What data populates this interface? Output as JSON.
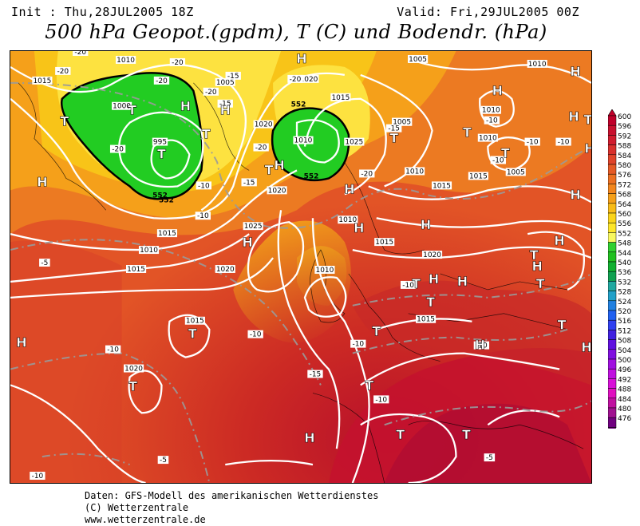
{
  "header": {
    "init": "Init : Thu,28JUL2005 18Z",
    "valid": "Valid: Fri,29JUL2005 00Z",
    "title": "500 hPa Geopot.(gpdm), T (C) und Bodendr. (hPa)"
  },
  "footer": {
    "line1": "Daten: GFS-Modell des amerikanischen Wetterdienstes",
    "line2": "(C) Wetterzentrale",
    "line3": "www.wetterzentrale.de"
  },
  "legend": {
    "levels": [
      "600",
      "596",
      "592",
      "588",
      "584",
      "580",
      "576",
      "572",
      "568",
      "564",
      "560",
      "556",
      "552",
      "548",
      "544",
      "540",
      "536",
      "532",
      "528",
      "524",
      "520",
      "516",
      "512",
      "508",
      "504",
      "500",
      "496",
      "492",
      "488",
      "484",
      "480",
      "476"
    ],
    "colors": [
      "#c0002a",
      "#c8102e",
      "#d01c2e",
      "#d8302c",
      "#e0442a",
      "#e55a26",
      "#ec7022",
      "#f2861e",
      "#f5a01a",
      "#f8bc18",
      "#fad41a",
      "#fde62a",
      "#f8f860",
      "#30d030",
      "#20c020",
      "#10b030",
      "#10a050",
      "#20a8a0",
      "#20a0c8",
      "#2080e0",
      "#2060f0",
      "#3040f0",
      "#4020e0",
      "#6010e0",
      "#8010e0",
      "#a010e0",
      "#c010e0",
      "#d810d8",
      "#e010c0",
      "#c010a0",
      "#a01090",
      "#700080"
    ]
  },
  "map_labels": {
    "pressure": [
      "1010",
      "1015",
      "1005",
      "1000",
      "995",
      "1020",
      "1005",
      "1010",
      "1015",
      "1020",
      "1025",
      "1015",
      "1010",
      "1015",
      "1010",
      "1005",
      "1010",
      "1015",
      "1020",
      "1025",
      "1020",
      "1015",
      "1010",
      "1015",
      "1010",
      "1015",
      "1020",
      "1010",
      "1005",
      "1010",
      "1015",
      "1020",
      "1015"
    ],
    "temperature": [
      "-20",
      "-20",
      "-20",
      "-20",
      "-15",
      "-20",
      "-20",
      "-20",
      "-15",
      "-20",
      "-10",
      "-10",
      "-15",
      "-20",
      "-15",
      "-10",
      "-10",
      "-10",
      "-10",
      "-5",
      "-10",
      "-10",
      "-15",
      "-10",
      "-10",
      "-10",
      "-5",
      "-10",
      "-5",
      "-10"
    ],
    "height": [
      "552",
      "552",
      "552",
      "552"
    ],
    "highs": [
      "H",
      "H",
      "H",
      "H",
      "H",
      "H",
      "H",
      "H",
      "H",
      "H",
      "H",
      "H",
      "H",
      "H",
      "H",
      "H",
      "H",
      "H",
      "H",
      "H",
      "H",
      "H"
    ],
    "lows": [
      "T",
      "T",
      "T",
      "T",
      "T",
      "T",
      "T",
      "T",
      "T",
      "T",
      "T",
      "T",
      "T",
      "T",
      "T",
      "T",
      "T",
      "T",
      "T",
      "T"
    ]
  }
}
